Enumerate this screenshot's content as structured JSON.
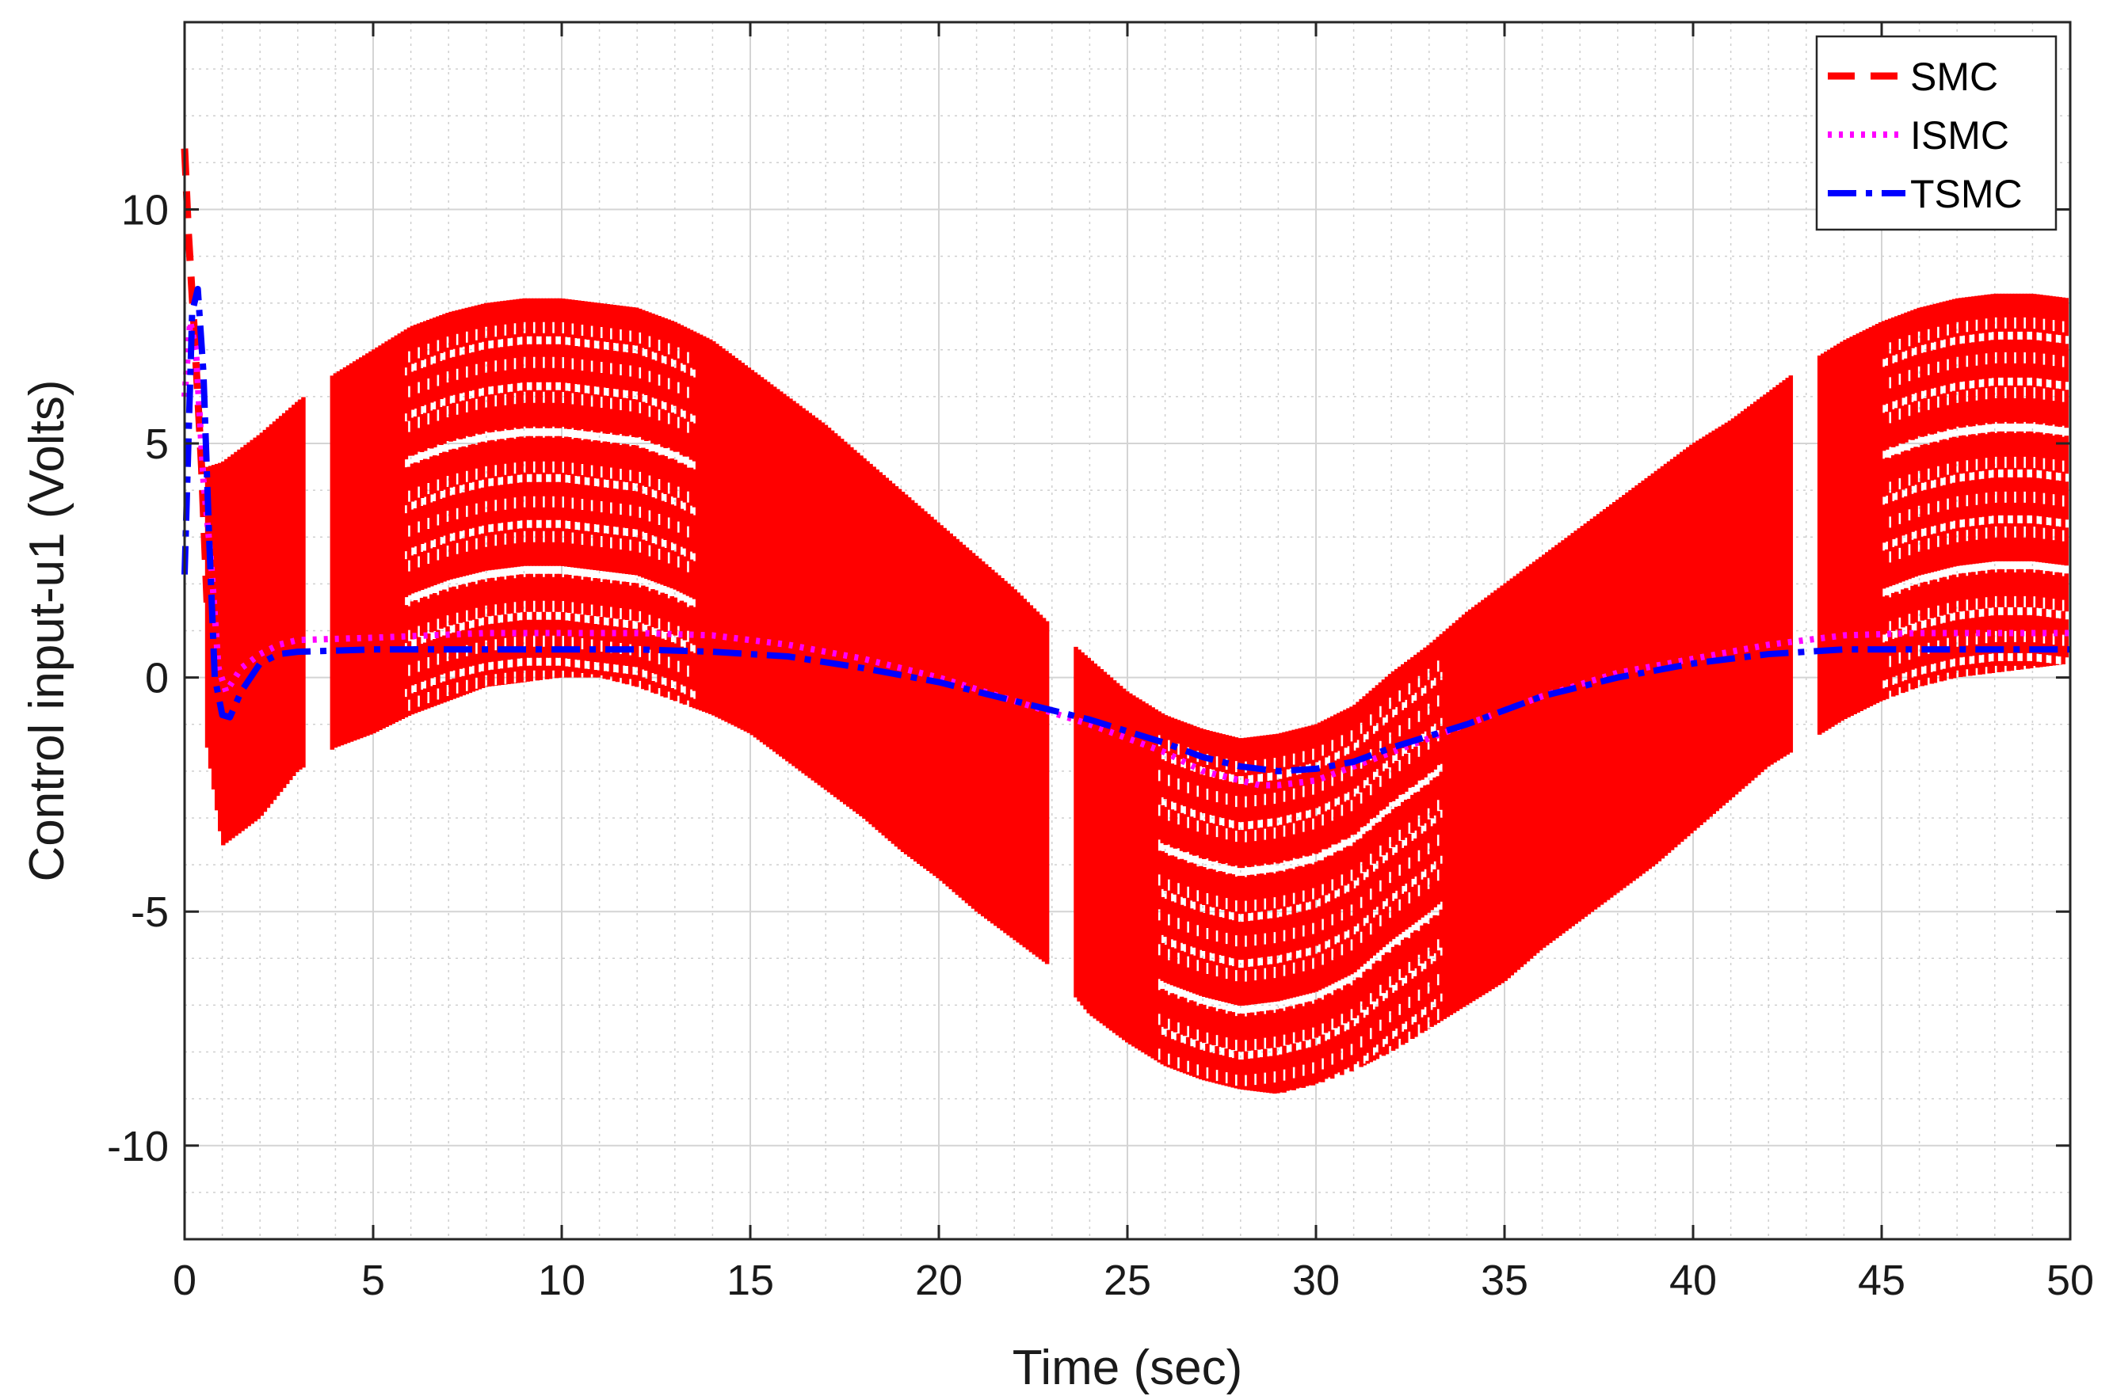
{
  "chart_data": {
    "type": "line",
    "title": "",
    "xlabel": "Time (sec)",
    "ylabel": "Control input-u1 (Volts)",
    "xlim": [
      0,
      50
    ],
    "ylim": [
      -12,
      14
    ],
    "xticks": [
      0,
      5,
      10,
      15,
      20,
      25,
      30,
      35,
      40,
      45,
      50
    ],
    "yticks": [
      -10,
      -5,
      0,
      5,
      10
    ],
    "xtick_labels": [
      "0",
      "5",
      "10",
      "15",
      "20",
      "25",
      "30",
      "35",
      "40",
      "45",
      "50"
    ],
    "ytick_labels": [
      "-10",
      "-5",
      "0",
      "5",
      "10"
    ],
    "grid": true,
    "minor_grid": true,
    "legend_position": "top-right",
    "series": [
      {
        "name": "SMC",
        "color": "#ff0000",
        "style": "dashed",
        "note": "high-frequency chattering band; upper and lower envelopes in Volts",
        "x": [
          0.6,
          1,
          2,
          3,
          4,
          5,
          6,
          7,
          8,
          9,
          10,
          11,
          12,
          13,
          14,
          15,
          16,
          17,
          18,
          19,
          20,
          21,
          22,
          23,
          24,
          25,
          26,
          27,
          28,
          29,
          30,
          31,
          32,
          33,
          34,
          35,
          36,
          37,
          38,
          39,
          40,
          41,
          42,
          43,
          44,
          45,
          46,
          47,
          48,
          49,
          50
        ],
        "upper": [
          4.5,
          4.6,
          5.2,
          5.9,
          6.5,
          7.0,
          7.5,
          7.8,
          8.0,
          8.1,
          8.1,
          8.0,
          7.9,
          7.6,
          7.2,
          6.6,
          6.0,
          5.4,
          4.7,
          4.0,
          3.3,
          2.6,
          1.9,
          1.1,
          0.4,
          -0.3,
          -0.8,
          -1.1,
          -1.3,
          -1.2,
          -1.0,
          -0.6,
          0.1,
          0.7,
          1.4,
          2.0,
          2.6,
          3.2,
          3.8,
          4.4,
          5.0,
          5.5,
          6.1,
          6.7,
          7.2,
          7.6,
          7.9,
          8.1,
          8.2,
          8.2,
          8.1
        ],
        "lower": [
          -1.5,
          -3.6,
          -3.0,
          -2.0,
          -1.5,
          -1.2,
          -0.8,
          -0.5,
          -0.2,
          -0.1,
          0.0,
          0.0,
          -0.2,
          -0.5,
          -0.8,
          -1.2,
          -1.8,
          -2.4,
          -3.0,
          -3.7,
          -4.3,
          -5.0,
          -5.6,
          -6.2,
          -7.2,
          -7.8,
          -8.3,
          -8.6,
          -8.8,
          -8.9,
          -8.7,
          -8.4,
          -8.0,
          -7.5,
          -7.0,
          -6.5,
          -5.8,
          -5.2,
          -4.6,
          -4.0,
          -3.3,
          -2.6,
          -1.9,
          -1.4,
          -0.9,
          -0.5,
          -0.2,
          0.0,
          0.1,
          0.2,
          0.3
        ]
      },
      {
        "name": "ISMC",
        "color": "#ff00ff",
        "style": "dotted",
        "x": [
          0,
          0.15,
          0.3,
          0.5,
          0.7,
          0.9,
          1.1,
          1.5,
          2,
          2.5,
          3,
          5,
          8,
          10,
          12,
          14,
          16,
          18,
          20,
          22,
          24,
          26,
          27,
          28,
          28.5,
          29,
          30,
          31,
          32,
          34,
          36,
          38,
          40,
          42,
          44,
          46,
          48,
          50
        ],
        "values": [
          6.0,
          7.6,
          7.0,
          4.2,
          2.5,
          0.2,
          -0.3,
          0.2,
          0.5,
          0.7,
          0.8,
          0.85,
          0.95,
          0.95,
          0.95,
          0.9,
          0.7,
          0.4,
          0.0,
          -0.5,
          -1.0,
          -1.6,
          -2.0,
          -2.2,
          -2.3,
          -2.3,
          -2.2,
          -1.9,
          -1.6,
          -1.0,
          -0.4,
          0.1,
          0.4,
          0.7,
          0.9,
          0.95,
          0.95,
          0.95
        ]
      },
      {
        "name": "TSMC",
        "color": "#0000ff",
        "style": "dashdot",
        "x": [
          0,
          0.1,
          0.2,
          0.35,
          0.5,
          0.65,
          0.8,
          1.0,
          1.2,
          1.5,
          2,
          2.5,
          3,
          5,
          8,
          10,
          12,
          14,
          16,
          18,
          20,
          22,
          24,
          26,
          27,
          28,
          29,
          30,
          31,
          32,
          34,
          36,
          38,
          40,
          42,
          44,
          46,
          48,
          50
        ],
        "values": [
          2.2,
          5.0,
          7.8,
          8.3,
          6.5,
          3.0,
          0.0,
          -0.8,
          -0.85,
          -0.3,
          0.3,
          0.5,
          0.55,
          0.6,
          0.6,
          0.6,
          0.6,
          0.55,
          0.45,
          0.2,
          -0.1,
          -0.5,
          -0.9,
          -1.4,
          -1.7,
          -1.9,
          -2.0,
          -1.95,
          -1.8,
          -1.5,
          -1.0,
          -0.4,
          0.0,
          0.3,
          0.5,
          0.6,
          0.6,
          0.6,
          0.6
        ]
      }
    ]
  }
}
